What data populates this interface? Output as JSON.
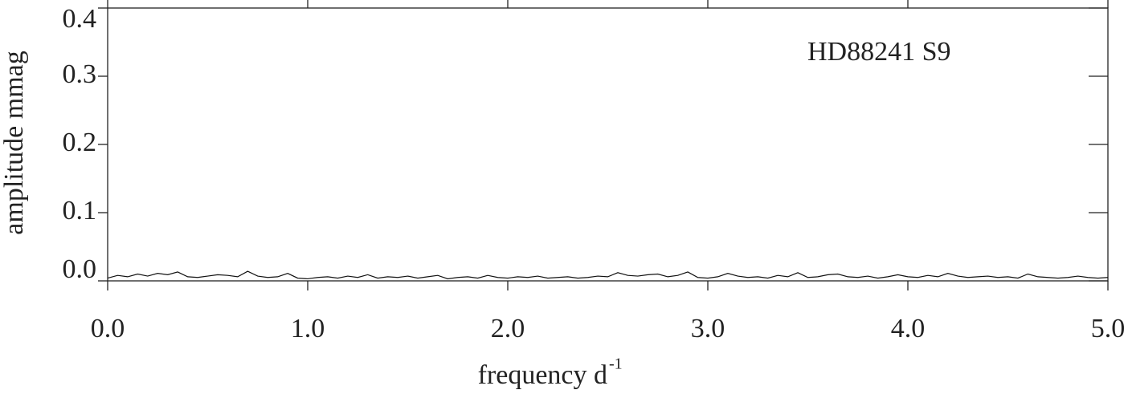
{
  "chart_data": {
    "type": "line",
    "annotation": "HD88241 S9",
    "x_label": "frequency d",
    "x_label_superscript": "-1",
    "y_label": "amplitude mmag",
    "xlim": [
      0,
      5
    ],
    "ylim": [
      0,
      0.4
    ],
    "xticks": [
      {
        "value": 0,
        "label": "0.0"
      },
      {
        "value": 1,
        "label": "1.0"
      },
      {
        "value": 2,
        "label": "2.0"
      },
      {
        "value": 3,
        "label": "3.0"
      },
      {
        "value": 4,
        "label": "4.0"
      },
      {
        "value": 5,
        "label": "5.0"
      }
    ],
    "yticks": [
      {
        "value": 0,
        "label": "0.0"
      },
      {
        "value": 0.1,
        "label": "0.1"
      },
      {
        "value": 0.2,
        "label": "0.2"
      },
      {
        "value": 0.3,
        "label": "0.3"
      },
      {
        "value": 0.4,
        "label": "0.4"
      }
    ],
    "x": [
      0,
      0.05,
      0.1,
      0.15,
      0.2,
      0.25,
      0.3,
      0.35,
      0.4,
      0.45,
      0.5,
      0.55,
      0.6,
      0.65,
      0.7,
      0.75,
      0.8,
      0.85,
      0.9,
      0.95,
      1,
      1.05,
      1.1,
      1.15,
      1.2,
      1.25,
      1.3,
      1.35,
      1.4,
      1.45,
      1.5,
      1.55,
      1.6,
      1.65,
      1.7,
      1.75,
      1.8,
      1.85,
      1.9,
      1.95,
      2,
      2.05,
      2.1,
      2.15,
      2.2,
      2.25,
      2.3,
      2.35,
      2.4,
      2.45,
      2.5,
      2.55,
      2.6,
      2.65,
      2.7,
      2.75,
      2.8,
      2.85,
      2.9,
      2.95,
      3,
      3.05,
      3.1,
      3.15,
      3.2,
      3.25,
      3.3,
      3.35,
      3.4,
      3.45,
      3.5,
      3.55,
      3.6,
      3.65,
      3.7,
      3.75,
      3.8,
      3.85,
      3.9,
      3.95,
      4,
      4.05,
      4.1,
      4.15,
      4.2,
      4.25,
      4.3,
      4.35,
      4.4,
      4.45,
      4.5,
      4.55,
      4.6,
      4.65,
      4.7,
      4.75,
      4.8,
      4.85,
      4.9,
      4.95,
      5
    ],
    "series": [
      {
        "color": "#111111",
        "values": [
          0.004,
          0.008,
          0.006,
          0.01,
          0.007,
          0.011,
          0.009,
          0.013,
          0.006,
          0.005,
          0.007,
          0.009,
          0.008,
          0.006,
          0.014,
          0.007,
          0.005,
          0.006,
          0.011,
          0.004,
          0.003,
          0.005,
          0.006,
          0.004,
          0.007,
          0.005,
          0.009,
          0.004,
          0.006,
          0.005,
          0.007,
          0.004,
          0.006,
          0.008,
          0.003,
          0.005,
          0.006,
          0.004,
          0.008,
          0.005,
          0.004,
          0.006,
          0.005,
          0.007,
          0.004,
          0.005,
          0.006,
          0.004,
          0.005,
          0.007,
          0.006,
          0.012,
          0.008,
          0.007,
          0.009,
          0.01,
          0.006,
          0.008,
          0.013,
          0.005,
          0.004,
          0.006,
          0.011,
          0.007,
          0.005,
          0.006,
          0.004,
          0.008,
          0.006,
          0.012,
          0.005,
          0.006,
          0.009,
          0.01,
          0.006,
          0.005,
          0.007,
          0.004,
          0.006,
          0.009,
          0.006,
          0.005,
          0.008,
          0.006,
          0.011,
          0.007,
          0.005,
          0.006,
          0.007,
          0.005,
          0.006,
          0.004,
          0.01,
          0.006,
          0.005,
          0.004,
          0.005,
          0.007,
          0.005,
          0.004,
          0.005
        ]
      }
    ]
  }
}
